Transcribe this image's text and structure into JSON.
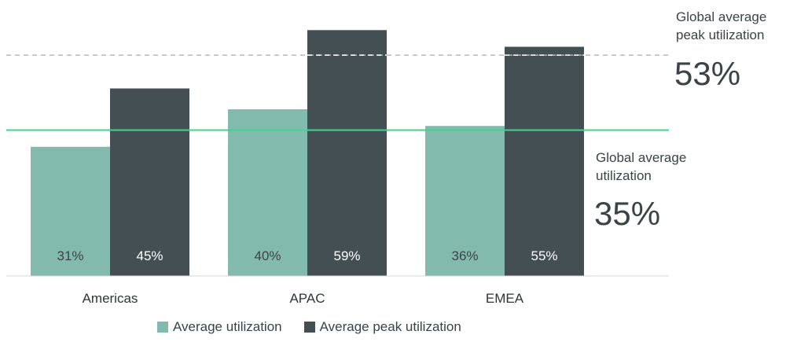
{
  "chart_data": {
    "type": "bar",
    "categories": [
      "Americas",
      "APAC",
      "EMEA"
    ],
    "series": [
      {
        "name": "Average utilization",
        "values": [
          31,
          40,
          36
        ],
        "labels": [
          "31%",
          "40%",
          "36%"
        ],
        "color": "#82bbad",
        "label_color": "#3a4347"
      },
      {
        "name": "Average peak utilization",
        "values": [
          45,
          59,
          55
        ],
        "labels": [
          "45%",
          "59%",
          "55%"
        ],
        "color": "#434f53",
        "label_color": "#ffffff"
      }
    ],
    "reference_lines": [
      {
        "label_line1": "Global average",
        "label_line2": "peak utilization",
        "value": 53,
        "value_label": "53%",
        "style": "dashed",
        "color": "#b9b9b9"
      },
      {
        "label_line1": "Global average",
        "label_line2": "utilization",
        "value": 35,
        "value_label": "35%",
        "style": "solid",
        "color": "#3dd68c"
      }
    ],
    "ylim": [
      0,
      100
    ],
    "grid": false,
    "legend_position": "bottom"
  }
}
